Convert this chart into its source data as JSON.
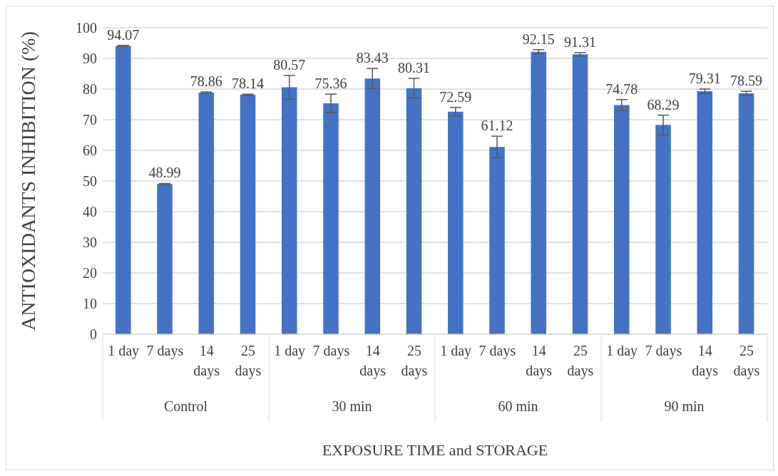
{
  "chart_data": {
    "type": "bar",
    "xlabel": "EXPOSURE TIME and STORAGE",
    "ylabel": "ANTIOXIDANTS INHIBITION (%)",
    "categories": [
      "1 day",
      "7 days",
      "14 days",
      "25 days",
      "1 day",
      "7 days",
      "14 days",
      "25 days",
      "1 day",
      "7 days",
      "14 days",
      "25 days",
      "1 day",
      "7 days",
      "14 days",
      "25 days"
    ],
    "values": [
      94.07,
      48.99,
      78.86,
      78.14,
      80.57,
      75.36,
      83.43,
      80.31,
      72.59,
      61.12,
      92.15,
      91.31,
      74.78,
      68.29,
      79.31,
      78.59
    ],
    "errors": [
      0.2,
      0.2,
      0.2,
      0.2,
      3.9,
      3.0,
      3.3,
      3.2,
      1.4,
      3.5,
      0.7,
      0.6,
      1.8,
      3.2,
      0.7,
      0.7
    ],
    "color": "#4472c4",
    "annotations": [
      "Control",
      "30 min",
      "60 min",
      "90 min"
    ],
    "ylim": [
      0,
      100
    ],
    "yticks": [
      0,
      10,
      20,
      30,
      40,
      50,
      60,
      70,
      80,
      90,
      100
    ],
    "grid": "y",
    "data_labels": true
  }
}
